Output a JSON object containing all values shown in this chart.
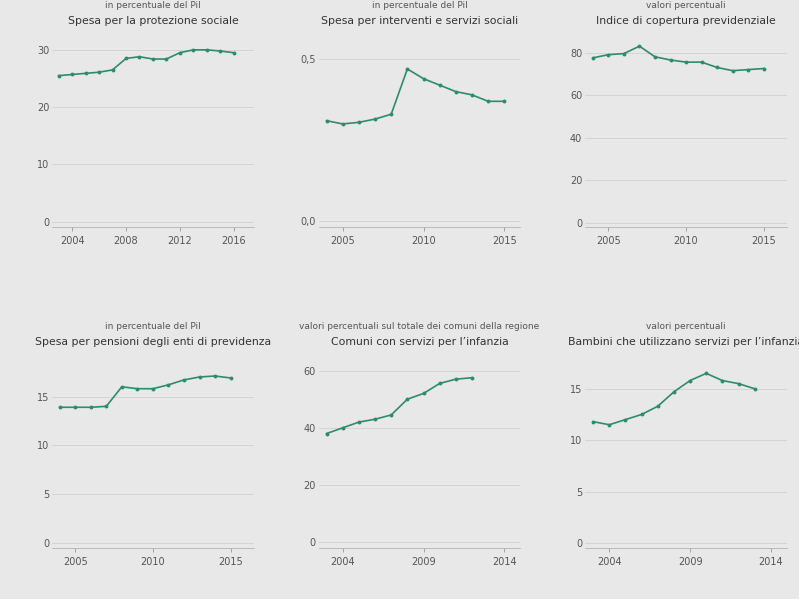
{
  "bg_color": "#e8e8e8",
  "line_color": "#2e8b6e",
  "marker_color": "#2e8b6e",
  "plots": [
    {
      "title": "Spesa per la protezione sociale",
      "subtitle": "in percentuale del Pil",
      "x": [
        2003,
        2004,
        2005,
        2006,
        2007,
        2008,
        2009,
        2010,
        2011,
        2012,
        2013,
        2014,
        2015,
        2016
      ],
      "y": [
        25.5,
        25.7,
        25.9,
        26.1,
        26.5,
        28.5,
        28.8,
        28.4,
        28.4,
        29.5,
        30.0,
        30.0,
        29.8,
        29.5
      ],
      "yticks": [
        0,
        10,
        20,
        30
      ],
      "ylim": [
        -1,
        34
      ],
      "xticks": [
        2004,
        2008,
        2012,
        2016
      ],
      "xlim": [
        2002.5,
        2017.5
      ]
    },
    {
      "title": "Spesa per interventi e servizi sociali",
      "subtitle": "in percentuale del Pil",
      "x": [
        2004,
        2005,
        2006,
        2007,
        2008,
        2009,
        2010,
        2011,
        2012,
        2013,
        2014,
        2015
      ],
      "y": [
        0.31,
        0.3,
        0.305,
        0.315,
        0.33,
        0.47,
        0.44,
        0.42,
        0.4,
        0.39,
        0.37,
        0.37
      ],
      "ytick_labels": [
        "0,0",
        "0,5"
      ],
      "yticks": [
        0.0,
        0.5
      ],
      "ylim": [
        -0.02,
        0.6
      ],
      "xticks": [
        2005,
        2010,
        2015
      ],
      "xlim": [
        2003.5,
        2016
      ]
    },
    {
      "title": "Indice di copertura previdenziale",
      "subtitle": "valori percentuali",
      "x": [
        2004,
        2005,
        2006,
        2007,
        2008,
        2009,
        2010,
        2011,
        2012,
        2013,
        2014,
        2015
      ],
      "y": [
        77.5,
        79.0,
        79.5,
        83.0,
        78.0,
        76.5,
        75.5,
        75.5,
        73.0,
        71.5,
        72.0,
        72.5
      ],
      "yticks": [
        0,
        20,
        40,
        60,
        80
      ],
      "ylim": [
        -2,
        92
      ],
      "xticks": [
        2005,
        2010,
        2015
      ],
      "xlim": [
        2003.5,
        2016.5
      ]
    },
    {
      "title": "Spesa per pensioni degli enti di previdenza",
      "subtitle": "in percentuale del Pil",
      "x": [
        2004,
        2005,
        2006,
        2007,
        2008,
        2009,
        2010,
        2011,
        2012,
        2013,
        2014,
        2015
      ],
      "y": [
        13.9,
        13.9,
        13.9,
        14.0,
        16.0,
        15.8,
        15.8,
        16.2,
        16.7,
        17.0,
        17.1,
        16.9
      ],
      "yticks": [
        0,
        5,
        10,
        15
      ],
      "ylim": [
        -0.5,
        20
      ],
      "xticks": [
        2005,
        2010,
        2015
      ],
      "xlim": [
        2003.5,
        2016.5
      ]
    },
    {
      "title": "Comuni con servizi per l’infanzia",
      "subtitle": "valori percentuali sul totale dei comuni della regione",
      "x": [
        2003,
        2004,
        2005,
        2006,
        2007,
        2008,
        2009,
        2010,
        2011,
        2012
      ],
      "y": [
        38.0,
        40.0,
        42.0,
        43.0,
        44.5,
        50.0,
        52.0,
        55.5,
        57.0,
        57.5
      ],
      "yticks": [
        0,
        20,
        40,
        60
      ],
      "ylim": [
        -2,
        68
      ],
      "xticks": [
        2004,
        2009,
        2014
      ],
      "xlim": [
        2002.5,
        2015
      ]
    },
    {
      "title": "Bambini che utilizzano servizi per l’infanzia",
      "subtitle": "valori percentuali",
      "x": [
        2003,
        2004,
        2005,
        2006,
        2007,
        2008,
        2009,
        2010,
        2011,
        2012,
        2013
      ],
      "y": [
        11.8,
        11.5,
        12.0,
        12.5,
        13.3,
        14.7,
        15.8,
        16.5,
        15.8,
        15.5,
        15.0
      ],
      "yticks": [
        0,
        5,
        10,
        15
      ],
      "ylim": [
        -0.5,
        19
      ],
      "xticks": [
        2004,
        2009,
        2014
      ],
      "xlim": [
        2002.5,
        2015
      ]
    }
  ]
}
